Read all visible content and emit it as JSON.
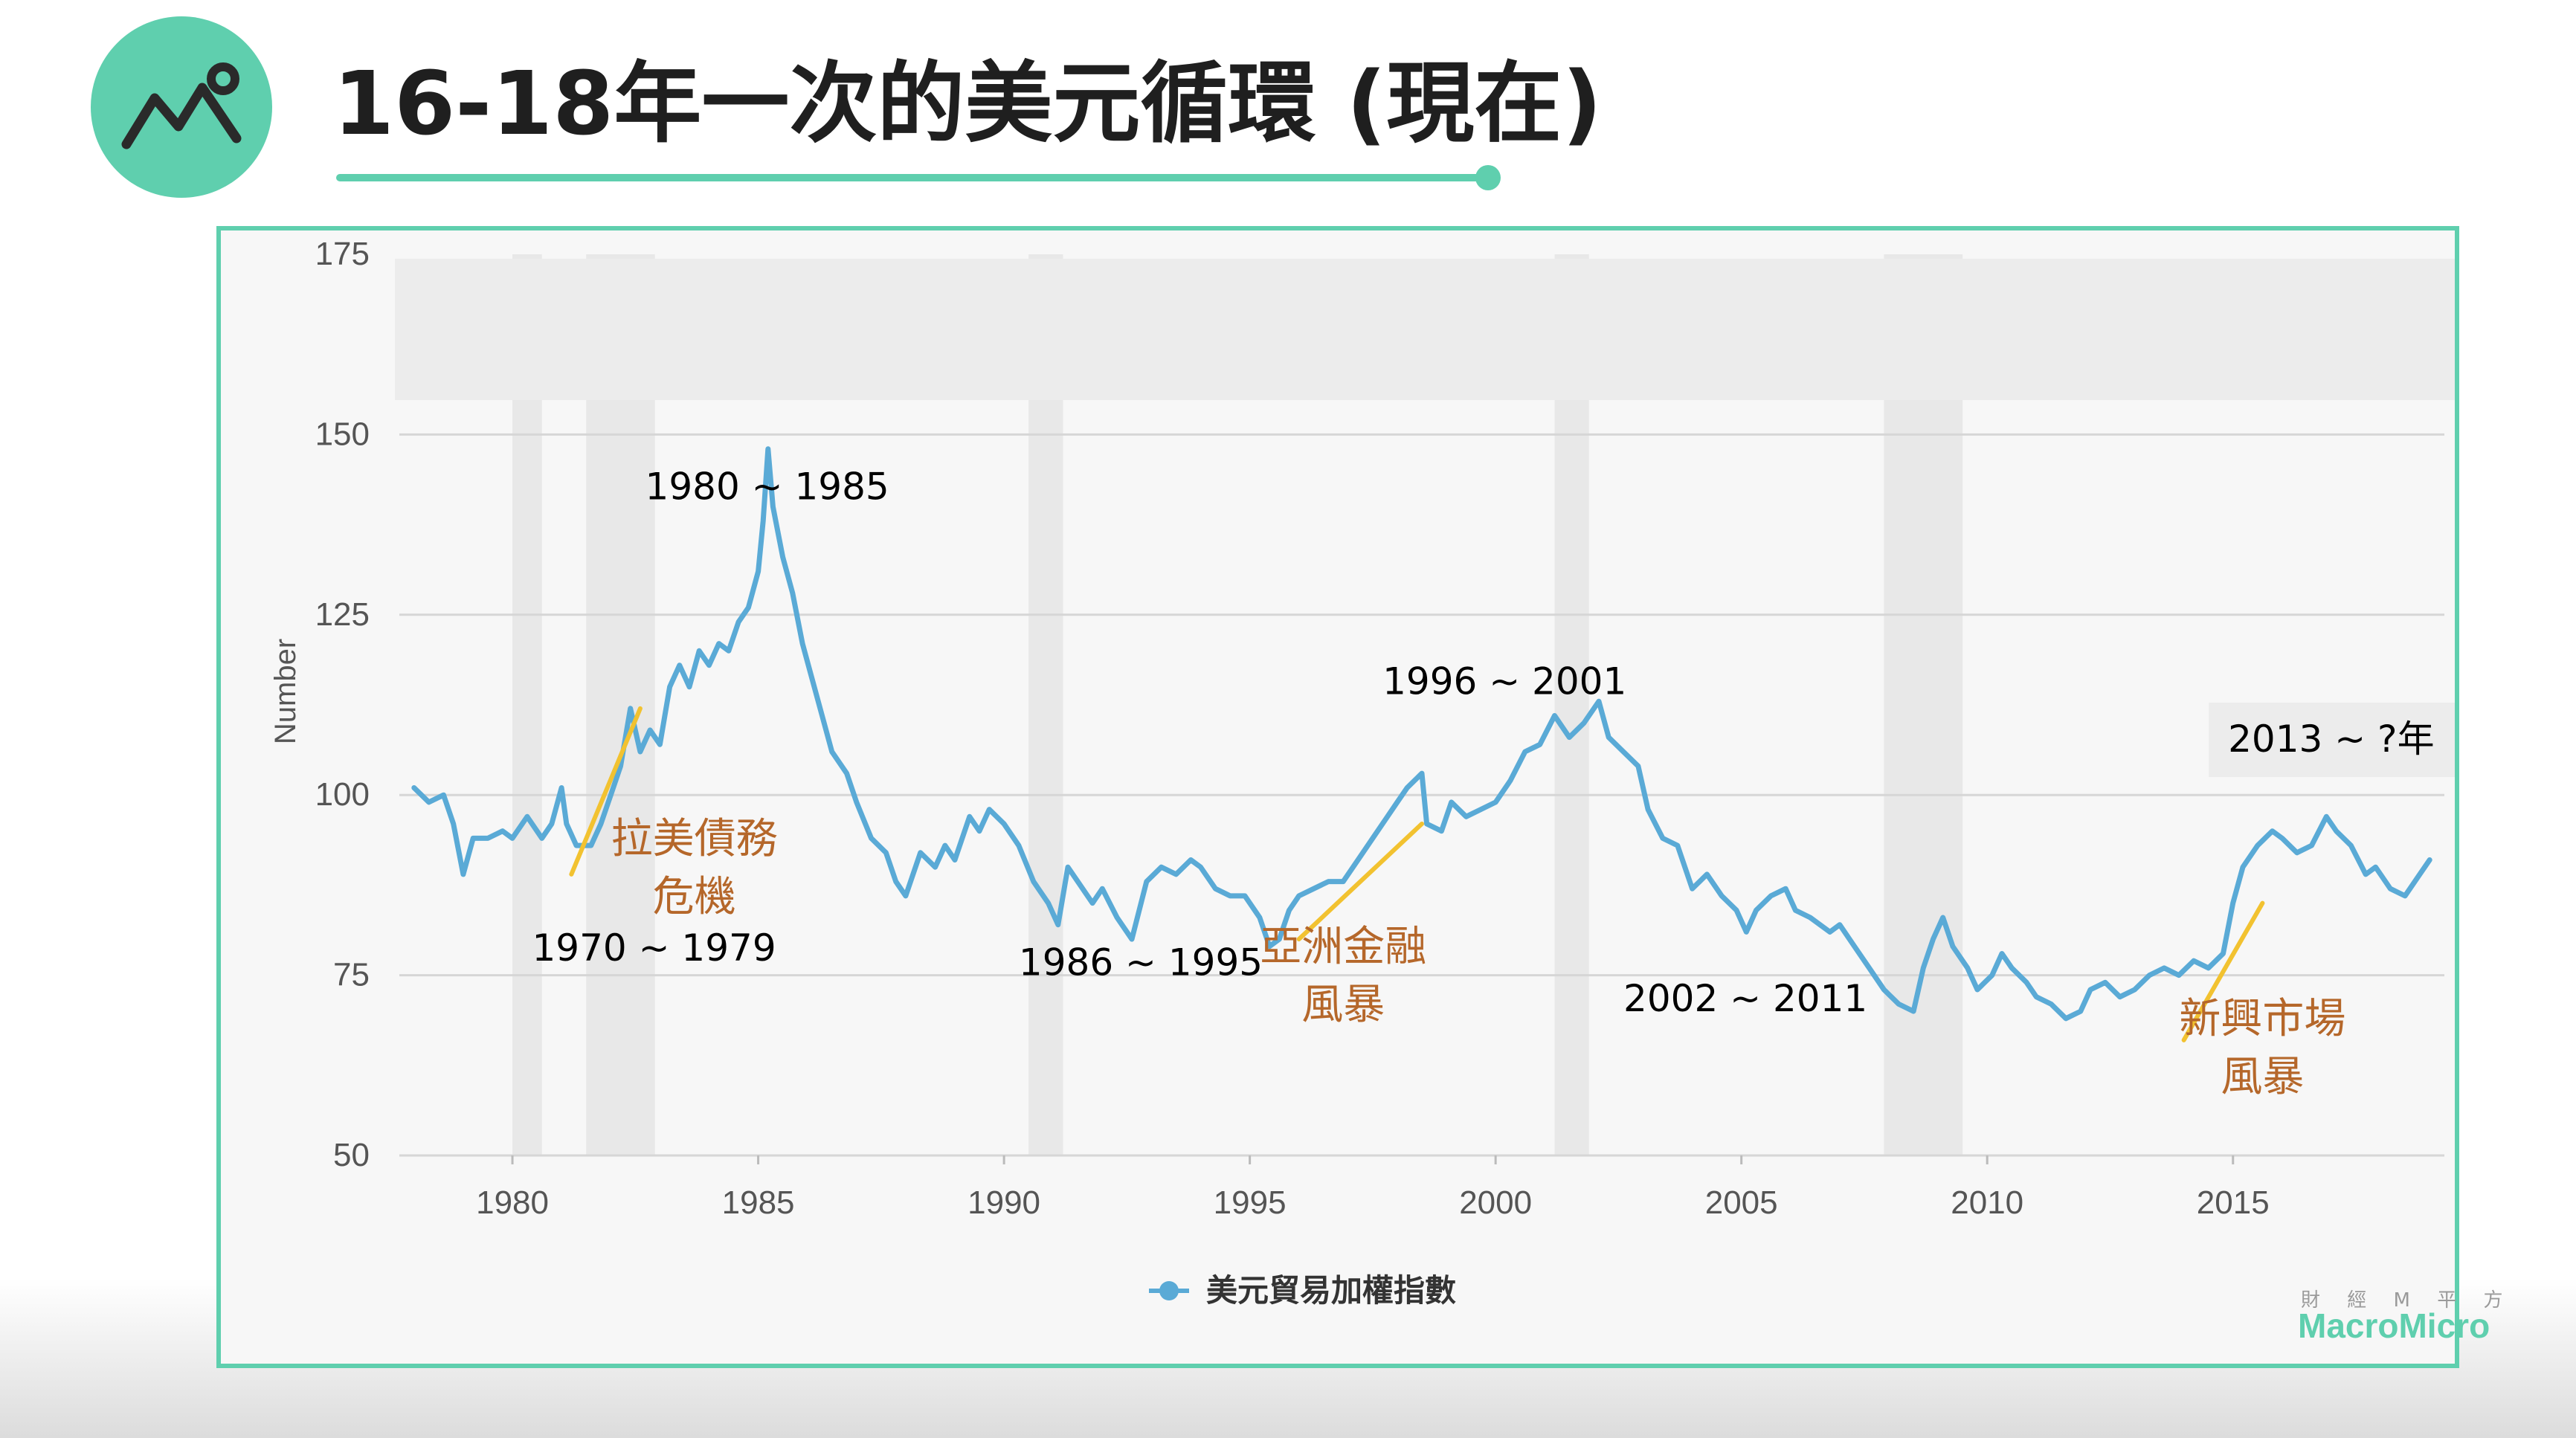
{
  "slide": {
    "title": "16-18年一次的美元循環 (現在)"
  },
  "colors": {
    "accent": "#5fcfae",
    "series": "#5aaad6",
    "annotation_orange": "#b5672a",
    "annotation_line": "#f2c230"
  },
  "icons": {
    "logo": "chart-line-icon"
  },
  "chart_data": {
    "type": "line",
    "title": "",
    "xlabel": "",
    "ylabel": "Number",
    "ylim": [
      50,
      175
    ],
    "xlim": [
      1977.7,
      2019.3
    ],
    "y_ticks": [
      "50",
      "75",
      "100",
      "125",
      "150",
      "175"
    ],
    "x_ticks": [
      "1980",
      "1985",
      "1990",
      "1995",
      "2000",
      "2005",
      "2010",
      "2015"
    ],
    "grid": true,
    "legend_position": "bottom-center",
    "recession_bands": [
      [
        1980.0,
        1980.6
      ],
      [
        1981.5,
        1982.9
      ],
      [
        1990.5,
        1991.2
      ],
      [
        2001.2,
        2001.9
      ],
      [
        2007.9,
        2009.5
      ]
    ],
    "series": [
      {
        "name": "美元貿易加權指數",
        "points": [
          [
            1978.0,
            101
          ],
          [
            1978.3,
            99
          ],
          [
            1978.6,
            100
          ],
          [
            1978.8,
            96
          ],
          [
            1979.0,
            89
          ],
          [
            1979.2,
            94
          ],
          [
            1979.5,
            94
          ],
          [
            1979.8,
            95
          ],
          [
            1980.0,
            94
          ],
          [
            1980.3,
            97
          ],
          [
            1980.6,
            94
          ],
          [
            1980.8,
            96
          ],
          [
            1981.0,
            101
          ],
          [
            1981.1,
            96
          ],
          [
            1981.3,
            93
          ],
          [
            1981.6,
            93
          ],
          [
            1981.8,
            96
          ],
          [
            1982.0,
            100
          ],
          [
            1982.2,
            104
          ],
          [
            1982.4,
            112
          ],
          [
            1982.6,
            106
          ],
          [
            1982.8,
            109
          ],
          [
            1983.0,
            107
          ],
          [
            1983.2,
            115
          ],
          [
            1983.4,
            118
          ],
          [
            1983.6,
            115
          ],
          [
            1983.8,
            120
          ],
          [
            1984.0,
            118
          ],
          [
            1984.2,
            121
          ],
          [
            1984.4,
            120
          ],
          [
            1984.6,
            124
          ],
          [
            1984.8,
            126
          ],
          [
            1985.0,
            131
          ],
          [
            1985.1,
            138
          ],
          [
            1985.2,
            148
          ],
          [
            1985.3,
            140
          ],
          [
            1985.5,
            133
          ],
          [
            1985.7,
            128
          ],
          [
            1985.9,
            121
          ],
          [
            1986.1,
            116
          ],
          [
            1986.3,
            111
          ],
          [
            1986.5,
            106
          ],
          [
            1986.8,
            103
          ],
          [
            1987.0,
            99
          ],
          [
            1987.3,
            94
          ],
          [
            1987.6,
            92
          ],
          [
            1987.8,
            88
          ],
          [
            1988.0,
            86
          ],
          [
            1988.3,
            92
          ],
          [
            1988.6,
            90
          ],
          [
            1988.8,
            93
          ],
          [
            1989.0,
            91
          ],
          [
            1989.3,
            97
          ],
          [
            1989.5,
            95
          ],
          [
            1989.7,
            98
          ],
          [
            1990.0,
            96
          ],
          [
            1990.3,
            93
          ],
          [
            1990.6,
            88
          ],
          [
            1990.9,
            85
          ],
          [
            1991.1,
            82
          ],
          [
            1991.3,
            90
          ],
          [
            1991.5,
            88
          ],
          [
            1991.8,
            85
          ],
          [
            1992.0,
            87
          ],
          [
            1992.3,
            83
          ],
          [
            1992.6,
            80
          ],
          [
            1992.9,
            88
          ],
          [
            1993.2,
            90
          ],
          [
            1993.5,
            89
          ],
          [
            1993.8,
            91
          ],
          [
            1994.0,
            90
          ],
          [
            1994.3,
            87
          ],
          [
            1994.6,
            86
          ],
          [
            1994.9,
            86
          ],
          [
            1995.2,
            83
          ],
          [
            1995.4,
            79
          ],
          [
            1995.6,
            80
          ],
          [
            1995.8,
            84
          ],
          [
            1996.0,
            86
          ],
          [
            1996.3,
            87
          ],
          [
            1996.6,
            88
          ],
          [
            1996.9,
            88
          ],
          [
            1997.2,
            91
          ],
          [
            1997.5,
            94
          ],
          [
            1997.8,
            97
          ],
          [
            1998.0,
            99
          ],
          [
            1998.2,
            101
          ],
          [
            1998.5,
            103
          ],
          [
            1998.6,
            96
          ],
          [
            1998.9,
            95
          ],
          [
            1999.1,
            99
          ],
          [
            1999.4,
            97
          ],
          [
            1999.7,
            98
          ],
          [
            2000.0,
            99
          ],
          [
            2000.3,
            102
          ],
          [
            2000.6,
            106
          ],
          [
            2000.9,
            107
          ],
          [
            2001.2,
            111
          ],
          [
            2001.5,
            108
          ],
          [
            2001.8,
            110
          ],
          [
            2002.1,
            113
          ],
          [
            2002.3,
            108
          ],
          [
            2002.6,
            106
          ],
          [
            2002.9,
            104
          ],
          [
            2003.1,
            98
          ],
          [
            2003.4,
            94
          ],
          [
            2003.7,
            93
          ],
          [
            2004.0,
            87
          ],
          [
            2004.3,
            89
          ],
          [
            2004.6,
            86
          ],
          [
            2004.9,
            84
          ],
          [
            2005.1,
            81
          ],
          [
            2005.3,
            84
          ],
          [
            2005.6,
            86
          ],
          [
            2005.9,
            87
          ],
          [
            2006.1,
            84
          ],
          [
            2006.4,
            83
          ],
          [
            2006.8,
            81
          ],
          [
            2007.0,
            82
          ],
          [
            2007.3,
            79
          ],
          [
            2007.6,
            76
          ],
          [
            2007.9,
            73
          ],
          [
            2008.2,
            71
          ],
          [
            2008.5,
            70
          ],
          [
            2008.7,
            76
          ],
          [
            2008.9,
            80
          ],
          [
            2009.1,
            83
          ],
          [
            2009.3,
            79
          ],
          [
            2009.6,
            76
          ],
          [
            2009.8,
            73
          ],
          [
            2010.1,
            75
          ],
          [
            2010.3,
            78
          ],
          [
            2010.5,
            76
          ],
          [
            2010.8,
            74
          ],
          [
            2011.0,
            72
          ],
          [
            2011.3,
            71
          ],
          [
            2011.6,
            69
          ],
          [
            2011.9,
            70
          ],
          [
            2012.1,
            73
          ],
          [
            2012.4,
            74
          ],
          [
            2012.7,
            72
          ],
          [
            2013.0,
            73
          ],
          [
            2013.3,
            75
          ],
          [
            2013.6,
            76
          ],
          [
            2013.9,
            75
          ],
          [
            2014.2,
            77
          ],
          [
            2014.5,
            76
          ],
          [
            2014.8,
            78
          ],
          [
            2015.0,
            85
          ],
          [
            2015.2,
            90
          ],
          [
            2015.5,
            93
          ],
          [
            2015.8,
            95
          ],
          [
            2016.0,
            94
          ],
          [
            2016.3,
            92
          ],
          [
            2016.6,
            93
          ],
          [
            2016.9,
            97
          ],
          [
            2017.1,
            95
          ],
          [
            2017.4,
            93
          ],
          [
            2017.7,
            89
          ],
          [
            2017.9,
            90
          ],
          [
            2018.2,
            87
          ],
          [
            2018.5,
            86
          ],
          [
            2018.8,
            89
          ],
          [
            2019.0,
            91
          ]
        ]
      }
    ],
    "annotations": {
      "periods": [
        {
          "text": "1980 ~ 1985",
          "x": 1982.7,
          "y": 141
        },
        {
          "text": "1970 ~ 1979",
          "x": 1980.4,
          "y": 77
        },
        {
          "text": "1986 ~ 1995",
          "x": 1990.3,
          "y": 75
        },
        {
          "text": "1996 ~ 2001",
          "x": 1997.7,
          "y": 114
        },
        {
          "text": "2002 ~ 2011",
          "x": 2002.6,
          "y": 70
        },
        {
          "text": "2013 ~ ?年",
          "x": 2014.9,
          "y": 106
        }
      ],
      "events": [
        {
          "lines": [
            "拉美債務",
            "危機"
          ],
          "x": 1983.7,
          "y": 92,
          "from": [
            1981.2,
            89
          ],
          "to": [
            1982.6,
            112
          ]
        },
        {
          "lines": [
            "亞洲金融",
            "風暴"
          ],
          "x": 1996.9,
          "y": 77,
          "from": [
            1996.0,
            80
          ],
          "to": [
            1998.5,
            96
          ]
        },
        {
          "lines": [
            "新興市場",
            "風暴"
          ],
          "x": 2015.6,
          "y": 67,
          "from": [
            2014.0,
            66
          ],
          "to": [
            2015.6,
            85
          ]
        }
      ]
    }
  },
  "watermark": {
    "zh": "財 經 M 平 方",
    "en": "MacroMicro"
  }
}
